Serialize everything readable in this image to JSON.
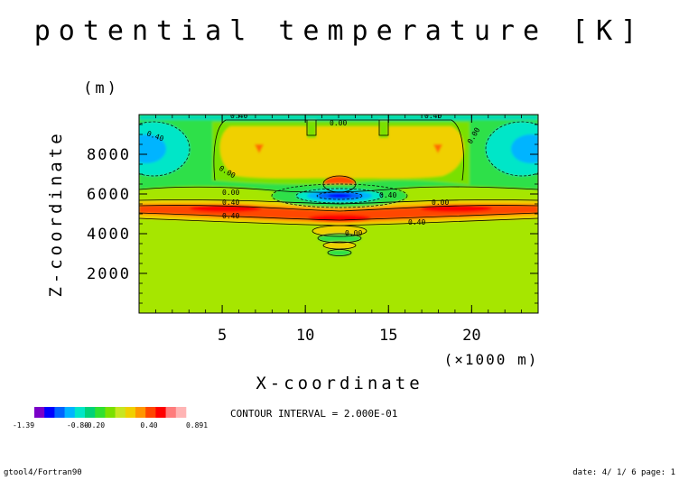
{
  "chart_data": {
    "type": "heatmap",
    "title": "potential temperature [K]",
    "xlabel": "X-coordinate",
    "x_unit_label": "(×1000 m)",
    "ylabel": "Z-coordinate",
    "y_unit_label": "(m)",
    "xlim": [
      0,
      24
    ],
    "ylim": [
      0,
      10000
    ],
    "x_ticks": [
      "5",
      "10",
      "15",
      "20"
    ],
    "y_ticks": [
      "2000",
      "4000",
      "6000",
      "8000"
    ],
    "x_tick_values": [
      5,
      10,
      15,
      20
    ],
    "y_tick_values": [
      2000,
      4000,
      6000,
      8000
    ],
    "contour_interval": "CONTOUR INTERVAL = 2.000E-01",
    "contour_labels": [
      "0.40",
      "0.00",
      "0.40",
      "0.00",
      "0.40",
      "0.00",
      "0.00",
      "0.00",
      "0.40",
      "0.40",
      "0.40",
      "0.40",
      "0.00"
    ],
    "colorbar": {
      "labels": [
        "-1.39",
        "-0.80",
        "-0.20",
        "0.40",
        "0.891"
      ],
      "colors": [
        "#7a00c8",
        "#0000ff",
        "#0064ff",
        "#00b4ff",
        "#00e6c8",
        "#00d278",
        "#30e030",
        "#7ae000",
        "#c8e620",
        "#f0d000",
        "#ff9600",
        "#ff4600",
        "#ff0000",
        "#ff7c7c",
        "#ffb4b4"
      ]
    }
  },
  "footer": {
    "left": "gtool4/Fortran90",
    "right": "date: 4/ 1/ 6 page: 1"
  }
}
